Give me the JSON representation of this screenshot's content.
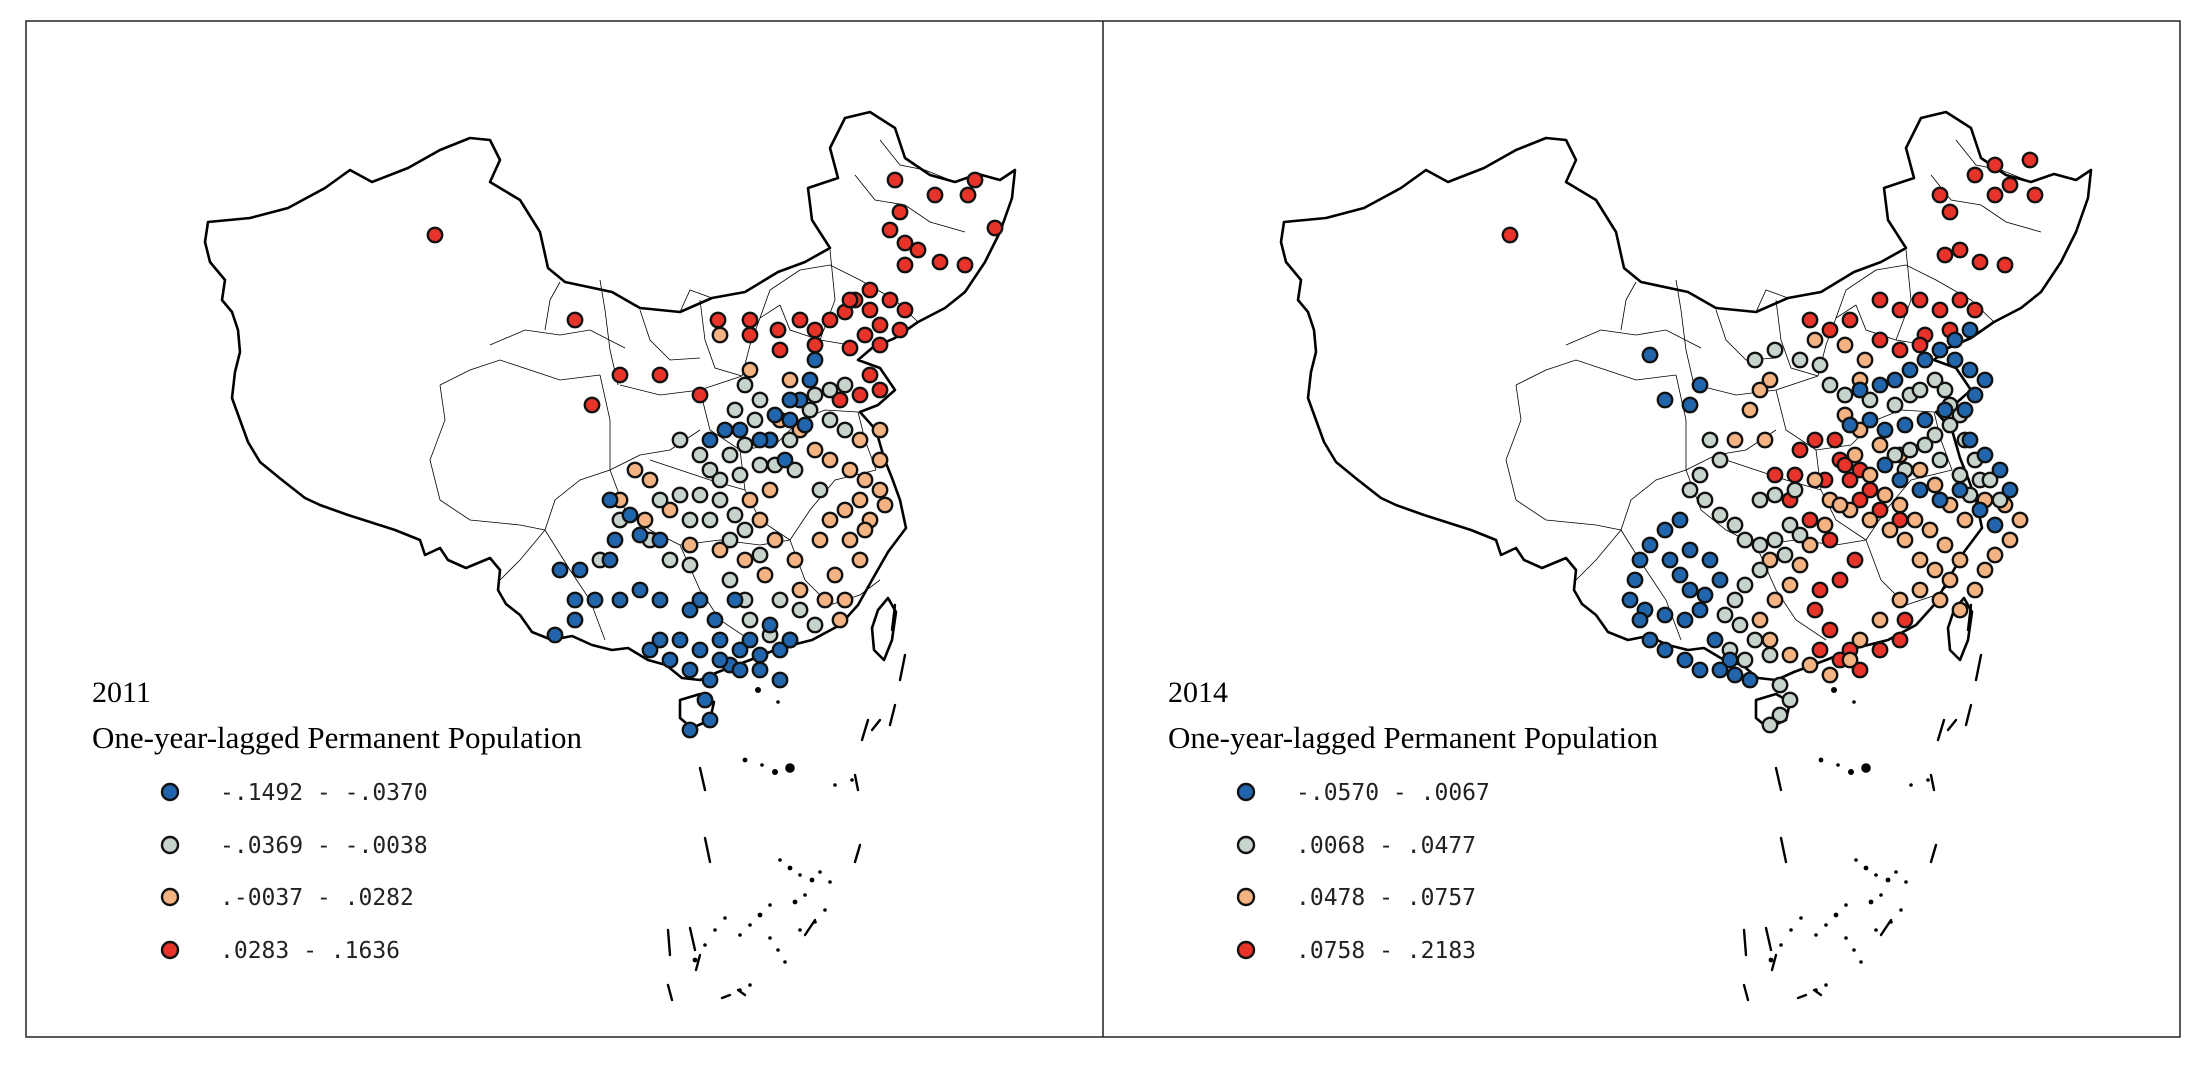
{
  "panels": [
    {
      "year": "2011",
      "subtitle": "One-year-lagged Permanent Population",
      "legend": [
        {
          "label": "-.1492 - -.0370",
          "color": "#2166ac"
        },
        {
          "label": "-.0369 - -.0038",
          "color": "#c7d4cc"
        },
        {
          "label": ".-0037 - .0282",
          "color": "#f4b383"
        },
        {
          "label": ".0283 - .1636",
          "color": "#e8332a"
        }
      ]
    },
    {
      "year": "2014",
      "subtitle": "One-year-lagged Permanent Population",
      "legend": [
        {
          "label": "-.0570 - .0067",
          "color": "#2166ac"
        },
        {
          "label": ".0068 - .0477",
          "color": "#c7d4cc"
        },
        {
          "label": ".0478 - .0757",
          "color": "#f4b383"
        },
        {
          "label": ".0758 - .2183",
          "color": "#e8332a"
        }
      ]
    }
  ]
}
